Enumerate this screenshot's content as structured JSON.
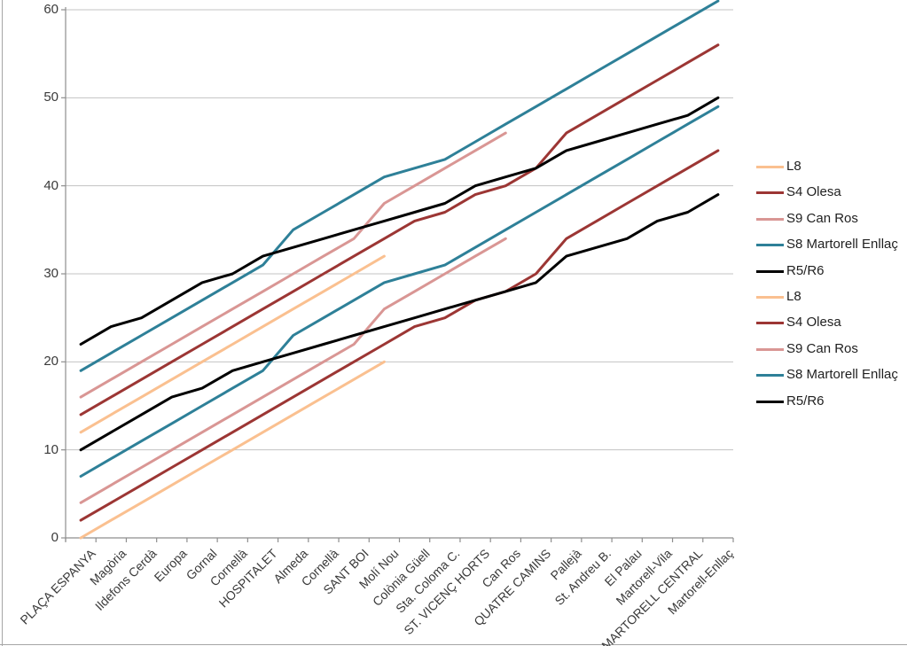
{
  "chart_data": {
    "type": "line",
    "title": "",
    "categories": [
      "PLAÇA ESPANYA",
      "Magòria",
      "Ildefons Cerdà",
      "Europa",
      "Gornal",
      "Cornellà",
      "HOSPITALET",
      "Almeda",
      "Cornellà",
      "SANT BOI",
      "Molí Nou",
      "Colònia Güell",
      "Sta. Coloma C.",
      "ST. VICENÇ HORTS",
      "Can Ros",
      "QUATRE CAMINS",
      "Pallejà",
      "St. Andreu B.",
      "El Palau",
      "Martorell-Vila",
      "MARTORELL CENTRAL",
      "Martorell-Enllaç"
    ],
    "y_axis": {
      "min": 0,
      "max": 60,
      "step": 10,
      "tick_labels": [
        "0",
        "10",
        "20",
        "30",
        "40",
        "50",
        "60"
      ]
    },
    "grid": true,
    "legend_position": "right",
    "series": [
      {
        "name": "L8",
        "color": "#FAC090",
        "values": [
          0,
          2,
          4,
          6,
          8,
          10,
          12,
          14,
          16,
          18,
          20
        ]
      },
      {
        "name": "S4 Olesa",
        "color": "#9C3634",
        "values": [
          2,
          4,
          6,
          8,
          10,
          12,
          14,
          16,
          18,
          20,
          22,
          24,
          25,
          27,
          28,
          30,
          34,
          36,
          38,
          40,
          42,
          44
        ]
      },
      {
        "name": "S9 Can Ros",
        "color": "#D99694",
        "values": [
          4,
          6,
          8,
          10,
          12,
          14,
          16,
          18,
          20,
          22,
          26,
          28,
          30,
          32,
          34
        ]
      },
      {
        "name": "S8 Martorell Enllaç",
        "color": "#2E8098",
        "values": [
          7,
          9,
          11,
          13,
          15,
          17,
          19,
          23,
          25,
          27,
          29,
          30,
          31,
          33,
          35,
          37,
          39,
          41,
          43,
          45,
          47,
          49
        ]
      },
      {
        "name": "R5/R6",
        "color": "#000000",
        "values": [
          10,
          12,
          14,
          16,
          17,
          19,
          20,
          21,
          22,
          23,
          24,
          25,
          26,
          27,
          28,
          29,
          32,
          33,
          34,
          36,
          37,
          39
        ]
      },
      {
        "name": "L8",
        "color": "#FAC090",
        "values": [
          12,
          14,
          16,
          18,
          20,
          22,
          24,
          26,
          28,
          30,
          32
        ]
      },
      {
        "name": "S4 Olesa",
        "color": "#9C3634",
        "values": [
          14,
          16,
          18,
          20,
          22,
          24,
          26,
          28,
          30,
          32,
          34,
          36,
          37,
          39,
          40,
          42,
          46,
          48,
          50,
          52,
          54,
          56
        ]
      },
      {
        "name": "S9 Can Ros",
        "color": "#D99694",
        "values": [
          16,
          18,
          20,
          22,
          24,
          26,
          28,
          30,
          32,
          34,
          38,
          40,
          42,
          44,
          46
        ]
      },
      {
        "name": "S8 Martorell Enllaç",
        "color": "#2E8098",
        "values": [
          19,
          21,
          23,
          25,
          27,
          29,
          31,
          35,
          37,
          39,
          41,
          42,
          43,
          45,
          47,
          49,
          51,
          53,
          55,
          57,
          59,
          61
        ]
      },
      {
        "name": "R5/R6",
        "color": "#000000",
        "values": [
          22,
          24,
          25,
          27,
          29,
          30,
          32,
          33,
          34,
          35,
          36,
          37,
          38,
          40,
          41,
          42,
          44,
          45,
          46,
          47,
          48,
          50
        ]
      }
    ]
  },
  "style_colors": {
    "gridline": "#c3c3c3",
    "axis": "#8e8e8e",
    "tick": "#8e8e8e",
    "label_text": "#3a3a3a",
    "legend_text": "#1f1f1f",
    "chart_border": "#a6a6a6",
    "background": "#ffffff"
  }
}
